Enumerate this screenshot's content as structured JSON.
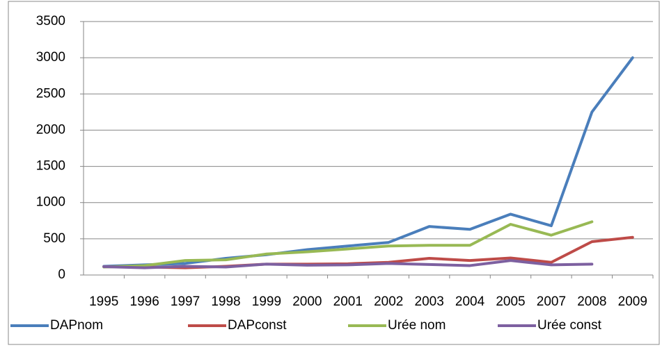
{
  "chart_data": {
    "type": "line",
    "categories": [
      "1995",
      "1996",
      "1997",
      "1998",
      "1999",
      "2000",
      "2001",
      "2002",
      "2003",
      "2004",
      "2005",
      "2007",
      "2008",
      "2009"
    ],
    "series": [
      {
        "name": "DAPnom",
        "color": "#4a7ebb",
        "values": [
          120,
          140,
          160,
          230,
          280,
          350,
          400,
          450,
          670,
          630,
          840,
          680,
          2250,
          3000
        ]
      },
      {
        "name": "DAPconst",
        "color": "#be4b48",
        "values": [
          115,
          110,
          100,
          120,
          150,
          150,
          155,
          175,
          230,
          200,
          235,
          175,
          460,
          520
        ]
      },
      {
        "name": "Urée nom",
        "color": "#98b954",
        "values": [
          110,
          130,
          200,
          210,
          290,
          320,
          360,
          400,
          410,
          410,
          700,
          550,
          735,
          null
        ]
      },
      {
        "name": "Urée const",
        "color": "#7d60a0",
        "values": [
          115,
          100,
          120,
          110,
          150,
          135,
          140,
          160,
          145,
          130,
          200,
          140,
          150,
          null
        ]
      }
    ],
    "ylim": [
      0,
      3500
    ],
    "yticks": [
      0,
      500,
      1000,
      1500,
      2000,
      2500,
      3000,
      3500
    ],
    "grid": true,
    "legend": "bottom"
  }
}
